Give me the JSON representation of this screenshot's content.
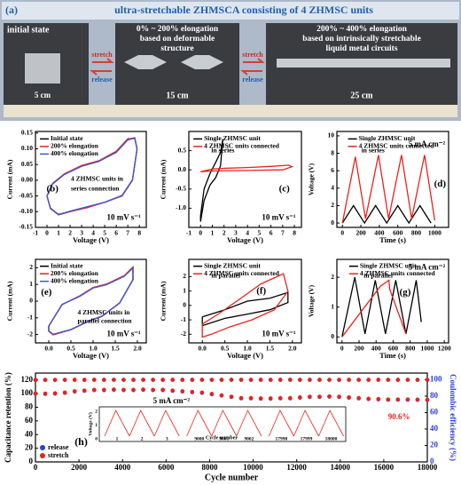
{
  "panel_a": {
    "label": "(a)",
    "title": "ultra-stretchable ZHMSCA consisting of 4 ZHMSC units",
    "initial": "initial state",
    "len1": "5 cm",
    "stretch1": "stretch",
    "release1": "release",
    "mid1": "0% ~ 200% elongation",
    "mid2": "based on deformable",
    "mid3": "structure",
    "len2": "15 cm",
    "stretch2": "stretch",
    "release2": "release",
    "right1": "200% ~ 400% elongation",
    "right2": "based on intrinsically  stretchable",
    "right3": "liquid metal circuits",
    "len3": "25 cm"
  },
  "chart_data": [
    {
      "type": "line",
      "xlabel": "Voltage (V)",
      "ylabel": "Current (mA)",
      "xlim": [
        -1,
        8.6
      ],
      "ylim": [
        -0.15,
        0.155
      ],
      "xticks": [
        -1,
        0,
        1,
        2,
        3,
        4,
        5,
        6,
        7,
        8
      ],
      "yticks": [
        -0.15,
        {
          "value": -0.1,
          "label": "-0.10"
        },
        -0.05,
        {
          "value": 0,
          "label": "0.00"
        },
        0.05,
        {
          "value": 0.1,
          "label": "0.10"
        },
        0.15
      ],
      "series": [
        {
          "name": "Initial state",
          "color": "#000000",
          "x": [
            0,
            0.5,
            1.5,
            3,
            4.5,
            6,
            7,
            7.6,
            7.8,
            7.4,
            6.5,
            5,
            3.5,
            2,
            1,
            0.3,
            0
          ],
          "values": [
            -0.05,
            -0.01,
            0.02,
            0.045,
            0.06,
            0.09,
            0.13,
            0.135,
            0.1,
            0.0,
            -0.05,
            -0.07,
            -0.085,
            -0.1,
            -0.11,
            -0.09,
            -0.05
          ]
        },
        {
          "name": "200% elongation",
          "color": "#e8231b",
          "x": [
            0,
            0.5,
            1.5,
            3,
            4.5,
            6,
            7,
            7.6,
            7.8,
            7.4,
            6.5,
            5,
            3.5,
            2,
            1,
            0.3,
            0
          ],
          "values": [
            -0.05,
            -0.01,
            0.02,
            0.047,
            0.062,
            0.092,
            0.132,
            0.133,
            0.1,
            0.0,
            -0.05,
            -0.07,
            -0.087,
            -0.1,
            -0.108,
            -0.09,
            -0.05
          ]
        },
        {
          "name": "400% elongation",
          "color": "#3d5bd9",
          "x": [
            0,
            0.5,
            1.5,
            3,
            4.5,
            6,
            7,
            7.6,
            7.8,
            7.4,
            6.5,
            5,
            3.5,
            2,
            1,
            0.3,
            0
          ],
          "values": [
            -0.05,
            -0.012,
            0.018,
            0.044,
            0.06,
            0.088,
            0.128,
            0.134,
            0.098,
            0.002,
            -0.048,
            -0.07,
            -0.084,
            -0.098,
            -0.11,
            -0.088,
            -0.05
          ]
        }
      ],
      "annotations": [
        "(b)",
        "4 ZHMSC units in",
        "series connection",
        "10 mV s⁻¹"
      ]
    },
    {
      "type": "line",
      "xlabel": "Voltage (V)",
      "ylabel": "Current (mA)",
      "xlim": [
        -1,
        8.6
      ],
      "ylim": [
        -1.5,
        1.0
      ],
      "xticks": [
        -1,
        0,
        1,
        2,
        3,
        4,
        5,
        6,
        7,
        8
      ],
      "yticks": [
        {
          "value": -1,
          "label": "-1.0"
        },
        -0.5,
        {
          "value": 0,
          "label": "0.0"
        },
        0.5
      ],
      "series": [
        {
          "name": "Single ZHMSC unit",
          "color": "#000000",
          "x": [
            0,
            0.3,
            0.8,
            1.3,
            1.7,
            1.9,
            1.7,
            1.3,
            0.8,
            0.3,
            0,
            0
          ],
          "values": [
            -1.2,
            -0.5,
            -0.1,
            0.2,
            0.45,
            0.8,
            0.1,
            -0.2,
            -0.4,
            -0.8,
            -1.35,
            -1.2
          ]
        },
        {
          "name": "4 ZHMSC units connected",
          "color": "#e8231b",
          "x": [
            0,
            1,
            2,
            4,
            6,
            7.5,
            7.8,
            7,
            5,
            3,
            1,
            0
          ],
          "values": [
            -0.05,
            0.02,
            0.04,
            0.06,
            0.09,
            0.12,
            0.08,
            0.0,
            -0.01,
            -0.02,
            -0.03,
            -0.05
          ]
        }
      ],
      "annotations": [
        "(c)",
        "in series",
        "10 mV s⁻¹"
      ]
    },
    {
      "type": "line",
      "xlabel": "Time (s)",
      "ylabel": "Voltage (V)",
      "xlim": [
        -60,
        1150
      ],
      "ylim": [
        -0.5,
        10.5
      ],
      "xticks": [
        0,
        200,
        400,
        600,
        800,
        1000
      ],
      "yticks": [
        0,
        2,
        4,
        6,
        8,
        10
      ],
      "series": [
        {
          "name": "Single ZHMSC unit",
          "color": "#000000",
          "x": [
            0,
            120,
            240,
            360,
            480,
            600,
            720,
            840,
            960
          ],
          "values": [
            0,
            2,
            0,
            2,
            0,
            2,
            0,
            2,
            0
          ]
        },
        {
          "name": "4 ZHMSC units connected",
          "color": "#e8231b",
          "x": [
            0,
            140,
            250,
            390,
            500,
            640,
            750,
            890,
            1000
          ],
          "values": [
            0,
            7.6,
            0.5,
            7.8,
            0.5,
            7.8,
            0.5,
            7.8,
            0.3
          ]
        }
      ],
      "annotations": [
        "(d)",
        "in series",
        "5 mA cm⁻²"
      ]
    },
    {
      "type": "line",
      "xlabel": "Voltage (V)",
      "ylabel": "Current (mA)",
      "xlim": [
        -0.3,
        2.2
      ],
      "ylim": [
        -2.5,
        2.5
      ],
      "xticks": [
        {
          "value": 0,
          "label": "0.0"
        },
        0.5,
        {
          "value": 1,
          "label": "1.0"
        },
        1.5,
        {
          "value": 2,
          "label": "2.0"
        }
      ],
      "yticks": [
        -2,
        -1,
        0,
        1,
        2
      ],
      "series": [
        {
          "name": "Initial state",
          "color": "#000000",
          "x": [
            0,
            0.3,
            0.7,
            1.0,
            1.3,
            1.7,
            1.9,
            1.9,
            1.6,
            1.2,
            0.9,
            0.5,
            0.1,
            0,
            0
          ],
          "values": [
            -1.5,
            -0.2,
            0.3,
            0.8,
            1.0,
            1.5,
            2.0,
            1.3,
            -0.1,
            -0.9,
            -1.2,
            -1.7,
            -2.0,
            -1.8,
            -1.5
          ]
        },
        {
          "name": "200% elongation",
          "color": "#e8231b",
          "x": [
            0,
            0.3,
            0.7,
            1.0,
            1.3,
            1.7,
            1.9,
            1.9,
            1.6,
            1.2,
            0.9,
            0.5,
            0.1,
            0,
            0
          ],
          "values": [
            -1.5,
            -0.22,
            0.32,
            0.82,
            1.02,
            1.52,
            2.05,
            1.3,
            -0.1,
            -0.92,
            -1.2,
            -1.72,
            -2.02,
            -1.8,
            -1.5
          ]
        },
        {
          "name": "400% elongation",
          "color": "#3d5bd9",
          "x": [
            0,
            0.3,
            0.7,
            1.0,
            1.3,
            1.7,
            1.9,
            1.9,
            1.6,
            1.2,
            0.9,
            0.5,
            0.1,
            0,
            0
          ],
          "values": [
            -1.48,
            -0.2,
            0.28,
            0.78,
            0.98,
            1.48,
            1.98,
            1.28,
            -0.12,
            -0.9,
            -1.18,
            -1.7,
            -1.98,
            -1.78,
            -1.48
          ]
        }
      ],
      "annotations": [
        "(e)",
        "4 ZHMSC units in",
        "parallel connection",
        "10 mV s⁻¹"
      ]
    },
    {
      "type": "line",
      "xlabel": "Voltage (V)",
      "ylabel": "Current (mA)",
      "xlim": [
        -0.3,
        2.2
      ],
      "ylim": [
        -2.6,
        3.2
      ],
      "xticks": [
        {
          "value": 0,
          "label": "0.0"
        },
        0.5,
        {
          "value": 1,
          "label": "1.0"
        },
        1.5,
        {
          "value": 2,
          "label": "2.0"
        }
      ],
      "yticks": [
        -2,
        -1,
        0,
        1,
        2
      ],
      "series": [
        {
          "name": "Single ZHMSC unit",
          "color": "#000000",
          "x": [
            0,
            0.5,
            1,
            1.5,
            1.9,
            1.9,
            1.5,
            1,
            0.5,
            0,
            0
          ],
          "values": [
            -0.8,
            -0.3,
            0.3,
            0.5,
            0.9,
            0.2,
            -0.3,
            -0.6,
            -0.9,
            -1.4,
            -0.8
          ]
        },
        {
          "name": "4 ZHMSC units connected",
          "color": "#e8231b",
          "x": [
            0,
            0.4,
            0.9,
            1.3,
            1.8,
            1.9,
            1.6,
            1.1,
            0.6,
            0.2,
            0,
            0
          ],
          "values": [
            -1.3,
            -0.5,
            0.6,
            1.5,
            2.2,
            1.0,
            -0.3,
            -1.0,
            -1.5,
            -2.0,
            -2.2,
            -1.3
          ]
        }
      ],
      "annotations": [
        "(f)",
        "in parallel",
        "10 mV s⁻¹"
      ]
    },
    {
      "type": "line",
      "xlabel": "Time (s)",
      "ylabel": "Voltage (V)",
      "xlim": [
        -60,
        1250
      ],
      "ylim": [
        -0.2,
        2.6
      ],
      "xticks": [
        0,
        200,
        400,
        600,
        800,
        1000,
        1200
      ],
      "yticks": [
        0,
        1,
        2
      ],
      "series": [
        {
          "name": "Single ZHMSC unit",
          "color": "#000000",
          "x": [
            0,
            150,
            270,
            390,
            510,
            630,
            750,
            870,
            930
          ],
          "values": [
            0,
            2,
            0.1,
            1.9,
            0.1,
            1.9,
            0.1,
            1.9,
            0.5
          ]
        },
        {
          "name": "4 ZHMSC units connected",
          "color": "#e8231b",
          "x": [
            0,
            450,
            550,
            560,
            750
          ],
          "values": [
            0,
            1.7,
            1.9,
            1.6,
            0.1
          ]
        }
      ],
      "annotations": [
        "(g)",
        "in parallel",
        "5 mA cm⁻²"
      ]
    },
    {
      "type": "scatter",
      "xlabel": "Cycle number",
      "ylabel": "Capacitance retention (%)",
      "y2label": "Coulombic efficiency (%)",
      "xlim": [
        0,
        18000
      ],
      "ylim": [
        0,
        130
      ],
      "y2lim": [
        0,
        108
      ],
      "xticks": [
        0,
        2000,
        4000,
        6000,
        8000,
        10000,
        12000,
        14000,
        16000,
        18000
      ],
      "yticks": [
        0,
        20,
        40,
        60,
        80,
        100,
        120
      ],
      "y2ticks": [
        0,
        20,
        40,
        60,
        80,
        100
      ],
      "x": [
        0,
        450,
        900,
        1350,
        1800,
        2250,
        2700,
        3150,
        3600,
        4050,
        4500,
        4950,
        5400,
        5850,
        6300,
        6750,
        7200,
        7650,
        8100,
        8550,
        9000,
        9450,
        9900,
        10350,
        10800,
        11250,
        11700,
        12150,
        12600,
        13050,
        13500,
        13950,
        14400,
        14850,
        15300,
        15750,
        16200,
        16650,
        17100,
        17550,
        18000
      ],
      "series": [
        {
          "name": "release",
          "color": "#2b3fd6",
          "values": [
            100,
            99.5,
            100,
            101,
            103,
            104,
            105,
            105,
            105.5,
            105,
            105,
            105.5,
            105,
            105,
            104,
            103,
            102,
            101,
            99,
            97,
            95,
            93,
            93,
            92.5,
            92.5,
            93,
            93,
            94,
            95,
            95,
            95.5,
            95,
            94,
            93,
            92,
            91.5,
            91,
            91,
            91,
            90.8,
            90.6
          ],
          "y2_values": [
            99.6,
            99.8,
            99.7,
            99.8,
            99.9,
            99.8,
            99.9,
            99.8,
            99.9,
            99.9,
            99.8,
            99.9,
            99.9,
            99.8,
            99.9,
            99.9,
            99.8,
            99.9,
            99.9,
            99.8,
            99.9,
            99.9,
            99.8,
            99.9,
            99.9,
            99.8,
            99.9,
            99.9,
            99.8,
            99.9,
            99.9,
            99.8,
            99.9,
            99.9,
            99.8,
            99.9,
            99.9,
            99.8,
            99.9,
            99.9,
            99.8
          ]
        },
        {
          "name": "stretch",
          "color": "#e8231b",
          "values": [
            100,
            100,
            100.5,
            101.5,
            103.5,
            104.5,
            105.5,
            105.5,
            106,
            105.5,
            105.5,
            106,
            105.5,
            105.5,
            104.5,
            103.5,
            102.5,
            101.5,
            99.5,
            97.5,
            95.5,
            93.5,
            93.5,
            93,
            93,
            93.5,
            93.5,
            94.5,
            95.5,
            95.5,
            96,
            95.5,
            94.5,
            93.5,
            92.5,
            92,
            91.5,
            91.5,
            91.5,
            91.2,
            90.9
          ],
          "y2_values": [
            99.5,
            99.6,
            99.7,
            99.7,
            99.8,
            99.7,
            99.8,
            99.8,
            99.8,
            99.7,
            99.8,
            99.8,
            99.7,
            99.8,
            99.8,
            99.7,
            99.8,
            99.8,
            99.7,
            99.8,
            99.8,
            99.7,
            99.8,
            99.8,
            99.7,
            99.8,
            99.8,
            99.7,
            99.8,
            99.8,
            99.7,
            99.8,
            99.8,
            99.7,
            99.8,
            99.8,
            99.7,
            99.8,
            99.8,
            99.7,
            99.8
          ]
        }
      ],
      "annotations": [
        "(h)",
        "5 mA cm⁻²",
        "90.6%"
      ],
      "inset": {
        "ylabel": "Voltage (V)",
        "xlabel": "Cycle number",
        "yticks": [
          0,
          1,
          2
        ],
        "cycles": [
          "1",
          "2",
          "3",
          "9000",
          "9001",
          "9002",
          "17998",
          "17999",
          "18000"
        ]
      }
    }
  ]
}
